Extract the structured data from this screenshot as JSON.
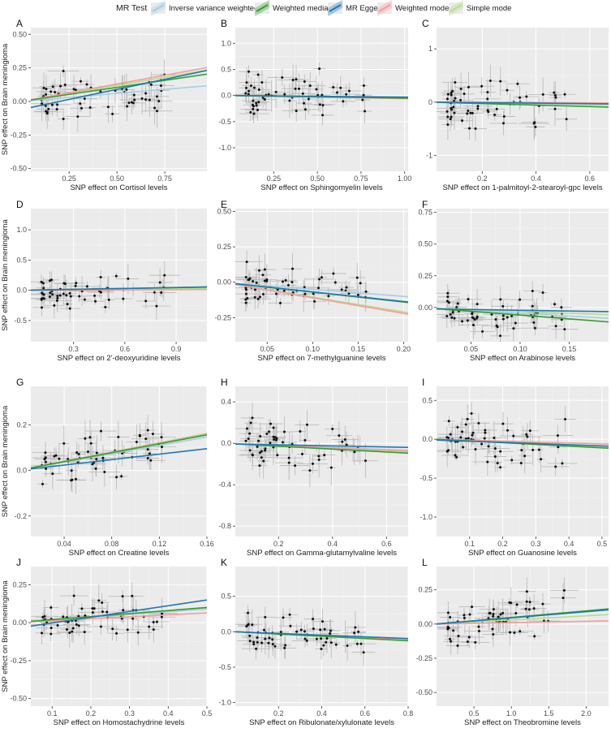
{
  "legend": {
    "title": "MR Test",
    "items": [
      {
        "name": "Inverse variance weighted",
        "color": "#a6cee3"
      },
      {
        "name": "Weighted median",
        "color": "#33a02c"
      },
      {
        "name": "MR Egger",
        "color": "#1f78b4"
      },
      {
        "name": "Weighted mode",
        "color": "#fb9a99"
      },
      {
        "name": "Simple mode",
        "color": "#b2df8a"
      }
    ]
  },
  "ylabel": "SNP effect on Brain meningioma",
  "chart_data": [
    {
      "panel": "A",
      "type": "scatter",
      "xlabel": "SNP effect on Cortisol levels",
      "xlim": [
        0.05,
        0.97
      ],
      "ylim": [
        -0.52,
        0.55
      ],
      "xticks": [
        0.25,
        0.5,
        0.75
      ],
      "xtick_labels": [
        "0.25",
        "0.50",
        "0.75"
      ],
      "yticks": [
        -0.5,
        -0.25,
        0,
        0.25,
        0.5
      ],
      "ytick_labels": [
        "-0.50",
        "-0.25",
        "0.00",
        "0.25",
        "0.50"
      ],
      "slopes": {
        "Inverse variance weighted": 0.12,
        "Weighted median": 0.21,
        "MR Egger": 0.3,
        "Weighted mode": 0.26,
        "Simple mode": 0.24
      },
      "intercepts": {
        "MR Egger": -0.06
      }
    },
    {
      "panel": "B",
      "type": "scatter",
      "xlabel": "SNP effect on Sphingomyelin  levels",
      "xlim": [
        0.03,
        1.02
      ],
      "ylim": [
        -1.45,
        1.3
      ],
      "xticks": [
        0.25,
        0.5,
        0.75,
        1.0
      ],
      "xtick_labels": [
        "0.25",
        "0.50",
        "0.75",
        "1.00"
      ],
      "yticks": [
        -1.0,
        -0.5,
        0,
        0.5,
        1.0
      ],
      "ytick_labels": [
        "-1.0",
        "-0.5",
        "0.0",
        "0.5",
        "1.0"
      ],
      "slopes": {
        "Inverse variance weighted": -0.04,
        "Weighted median": -0.05,
        "MR Egger": -0.03,
        "Weighted mode": -0.06,
        "Simple mode": -0.05
      },
      "intercepts": {
        "MR Egger": 0.0
      }
    },
    {
      "panel": "C",
      "type": "scatter",
      "xlabel": "SNP effect on 1-palmitoyl-2-stearoyl-gpc  levels",
      "xlim": [
        0.03,
        0.67
      ],
      "ylim": [
        -1.3,
        1.4
      ],
      "xticks": [
        0.2,
        0.4,
        0.6
      ],
      "xtick_labels": [
        "0.2",
        "0.4",
        "0.6"
      ],
      "yticks": [
        -1,
        0,
        1
      ],
      "ytick_labels": [
        "-1",
        "0",
        "1"
      ],
      "slopes": {
        "Inverse variance weighted": -0.08,
        "Weighted median": -0.14,
        "MR Egger": -0.05,
        "Weighted mode": -0.02,
        "Simple mode": -0.06
      },
      "intercepts": {
        "MR Egger": 0.0
      }
    },
    {
      "panel": "D",
      "type": "scatter",
      "xlabel": "SNP effect on 2'-deoxyuridine levels",
      "xlim": [
        0.05,
        1.08
      ],
      "ylim": [
        -0.85,
        1.35
      ],
      "xticks": [
        0.3,
        0.6,
        0.9
      ],
      "xtick_labels": [
        "0.3",
        "0.6",
        "0.9"
      ],
      "yticks": [
        -0.5,
        0,
        0.5,
        1.0
      ],
      "ytick_labels": [
        "-0.5",
        "0.0",
        "0.5",
        "1.0"
      ],
      "slopes": {
        "Inverse variance weighted": 0.04,
        "Weighted median": 0.05,
        "MR Egger": 0.05,
        "Weighted mode": 0.01,
        "Simple mode": 0.03
      },
      "intercepts": {
        "MR Egger": 0.0
      }
    },
    {
      "panel": "E",
      "type": "scatter",
      "xlabel": "SNP effect on 7-methylguanine levels",
      "xlim": [
        0.015,
        0.205
      ],
      "ylim": [
        -0.42,
        0.52
      ],
      "xticks": [
        0.05,
        0.1,
        0.15,
        0.2
      ],
      "xtick_labels": [
        "0.05",
        "0.10",
        "0.15",
        "0.20"
      ],
      "yticks": [
        -0.25,
        0,
        0.25,
        0.5
      ],
      "ytick_labels": [
        "-0.25",
        "0.00",
        "0.25",
        "0.50"
      ],
      "slopes": {
        "Inverse variance weighted": -0.5,
        "Weighted median": -0.7,
        "MR Egger": -0.68,
        "Weighted mode": -1.1,
        "Simple mode": -1.05
      },
      "intercepts": {
        "MR Egger": 0.0
      }
    },
    {
      "panel": "F",
      "type": "scatter",
      "xlabel": "SNP effect on Arabinose levels",
      "xlim": [
        0.015,
        0.19
      ],
      "ylim": [
        -0.27,
        0.78
      ],
      "xticks": [
        0.05,
        0.1,
        0.15
      ],
      "xtick_labels": [
        "0.05",
        "0.10",
        "0.15"
      ],
      "yticks": [
        0,
        0.25,
        0.5,
        0.75
      ],
      "ytick_labels": [
        "0.00",
        "0.25",
        "0.50",
        "0.75"
      ],
      "slopes": {
        "Inverse variance weighted": -0.45,
        "Weighted median": -0.6,
        "MR Egger": -0.12,
        "Weighted mode": -0.6,
        "Simple mode": -0.3
      },
      "intercepts": {
        "MR Egger": -0.01
      }
    },
    {
      "panel": "G",
      "type": "scatter",
      "xlabel": "SNP effect on Creatine levels",
      "xlim": [
        0.012,
        0.16
      ],
      "ylim": [
        -0.29,
        0.37
      ],
      "xticks": [
        0.04,
        0.08,
        0.12,
        0.16
      ],
      "xtick_labels": [
        "0.04",
        "0.08",
        "0.12",
        "0.16"
      ],
      "yticks": [
        -0.2,
        0,
        0.2
      ],
      "ytick_labels": [
        "-0.2",
        "0.0",
        "0.2"
      ],
      "slopes": {
        "Inverse variance weighted": 0.92,
        "Weighted median": 0.98,
        "MR Egger": 0.6,
        "Weighted mode": 1.0,
        "Simple mode": 1.02
      },
      "intercepts": {
        "MR Egger": 0.0
      }
    },
    {
      "panel": "H",
      "type": "scatter",
      "xlabel": "SNP effect on Gamma-glutamylvaline levels",
      "xlim": [
        0.04,
        0.68
      ],
      "ylim": [
        -0.9,
        0.55
      ],
      "xticks": [
        0.2,
        0.4,
        0.6
      ],
      "xtick_labels": [
        "0.2",
        "0.4",
        "0.6"
      ],
      "yticks": [
        -0.8,
        -0.4,
        0,
        0.4
      ],
      "ytick_labels": [
        "-0.8",
        "-0.4",
        "0.0",
        "0.4"
      ],
      "slopes": {
        "Inverse variance weighted": -0.1,
        "Weighted median": -0.14,
        "MR Egger": -0.05,
        "Weighted mode": -0.11,
        "Simple mode": -0.12
      },
      "intercepts": {
        "MR Egger": -0.005
      }
    },
    {
      "panel": "I",
      "type": "scatter",
      "xlabel": "SNP effect on Guanosine levels",
      "xlim": [
        0.0,
        0.52
      ],
      "ylim": [
        -1.25,
        0.68
      ],
      "xticks": [
        0.1,
        0.2,
        0.3,
        0.4,
        0.5
      ],
      "xtick_labels": [
        "0.1",
        "0.2",
        "0.3",
        "0.4",
        "0.5"
      ],
      "yticks": [
        -1.0,
        -0.5,
        0,
        0.5
      ],
      "ytick_labels": [
        "-1.0",
        "-0.5",
        "0.0",
        "0.5"
      ],
      "slopes": {
        "Inverse variance weighted": -0.2,
        "Weighted median": -0.22,
        "MR Egger": -0.15,
        "Weighted mode": -0.12,
        "Simple mode": -0.18
      },
      "intercepts": {
        "MR Egger": -0.01
      }
    },
    {
      "panel": "J",
      "type": "scatter",
      "xlabel": "SNP effect on Homostachydrine levels",
      "xlim": [
        0.045,
        0.5
      ],
      "ylim": [
        -0.55,
        0.37
      ],
      "xticks": [
        0.1,
        0.2,
        0.3,
        0.4,
        0.5
      ],
      "xtick_labels": [
        "0.1",
        "0.2",
        "0.3",
        "0.4",
        "0.5"
      ],
      "yticks": [
        -0.5,
        -0.25,
        0,
        0.25
      ],
      "ytick_labels": [
        "-0.50",
        "-0.25",
        "0.00",
        "0.25"
      ],
      "slopes": {
        "Inverse variance weighted": 0.18,
        "Weighted median": 0.2,
        "MR Egger": 0.38,
        "Weighted mode": 0.13,
        "Simple mode": 0.2
      },
      "intercepts": {
        "MR Egger": -0.04
      }
    },
    {
      "panel": "K",
      "type": "scatter",
      "xlabel": "SNP effect on Ribulonate/xylulonate levels",
      "xlim": [
        0.0,
        0.8
      ],
      "ylim": [
        -1.05,
        0.92
      ],
      "xticks": [
        0.2,
        0.4,
        0.6,
        0.8
      ],
      "xtick_labels": [
        "0.2",
        "0.4",
        "0.6",
        "0.8"
      ],
      "yticks": [
        -1.0,
        -0.5,
        0,
        0.5
      ],
      "ytick_labels": [
        "-1.0",
        "-0.5",
        "0.0",
        "0.5"
      ],
      "slopes": {
        "Inverse variance weighted": -0.14,
        "Weighted median": -0.16,
        "MR Egger": -0.12,
        "Weighted mode": -0.14,
        "Simple mode": -0.15
      },
      "intercepts": {
        "MR Egger": 0.0
      }
    },
    {
      "panel": "L",
      "type": "scatter",
      "xlabel": "SNP effect on Theobromine levels",
      "xlim": [
        0.0,
        2.3
      ],
      "ylim": [
        -0.6,
        0.42
      ],
      "xticks": [
        0.5,
        1.0,
        1.5,
        2.0
      ],
      "xtick_labels": [
        "0.5",
        "1.0",
        "1.5",
        "2.0"
      ],
      "yticks": [
        -0.5,
        -0.25,
        0,
        0.25
      ],
      "ytick_labels": [
        "-0.50",
        "-0.25",
        "0.00",
        "0.25"
      ],
      "slopes": {
        "Inverse variance weighted": 0.045,
        "Weighted median": 0.048,
        "MR Egger": 0.045,
        "Weighted mode": 0.01,
        "Simple mode": 0.03
      },
      "intercepts": {
        "MR Egger": 0.0
      }
    }
  ]
}
